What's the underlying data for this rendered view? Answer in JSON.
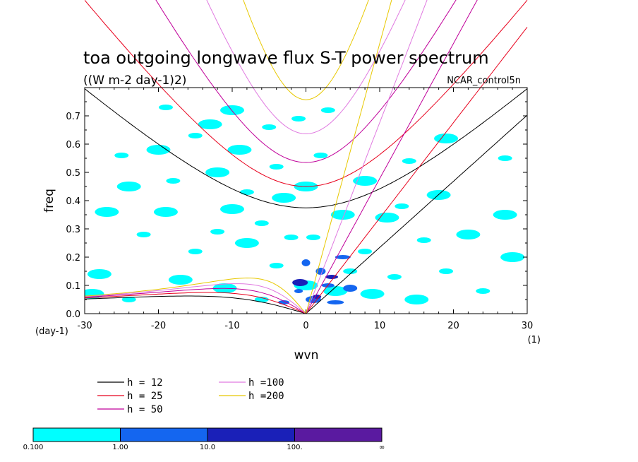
{
  "chart_data": {
    "type": "contour",
    "title": "toa outgoing longwave flux S-T power spectrum",
    "subtitle": "((W m-2 day-1)2)",
    "case_label": "NCAR_control5n",
    "xlabel": "wvn",
    "ylabel": "freq",
    "x_units": "(1)",
    "y_units": "(day-1)",
    "xlim": [
      -30,
      30
    ],
    "ylim": [
      0,
      0.8
    ],
    "x_ticks": [
      -30,
      -20,
      -10,
      0,
      10,
      20,
      30
    ],
    "y_ticks": [
      0.0,
      0.1,
      0.2,
      0.3,
      0.4,
      0.5,
      0.6,
      0.7
    ],
    "y_tick_labels": [
      "0.0",
      "0.1",
      "0.2",
      "0.3",
      "0.4",
      "0.5",
      "0.6",
      "0.7"
    ],
    "dispersion_curves": [
      {
        "name": "h = 12",
        "h": 12,
        "color": "#000000"
      },
      {
        "name": "h = 25",
        "h": 25,
        "color": "#e8001c"
      },
      {
        "name": "h = 50",
        "h": 50,
        "color": "#c0009a"
      },
      {
        "name": "h =100",
        "h": 100,
        "color": "#e07ae0"
      },
      {
        "name": "h =200",
        "h": 200,
        "color": "#e8c800"
      }
    ],
    "colorbar": {
      "levels": [
        "0.100",
        "1.00",
        "10.0",
        "100.",
        "∞"
      ],
      "colors": [
        "#00ffff",
        "#1466f0",
        "#1a20b8",
        "#5a1aa0"
      ]
    },
    "contour_fields": [
      {
        "level": "0.1-1",
        "color": "#00ffff",
        "patches": [
          [
            -25,
            0.56
          ],
          [
            -20,
            0.58
          ],
          [
            -18,
            0.47
          ],
          [
            -24,
            0.45
          ],
          [
            -15,
            0.63
          ],
          [
            -9,
            0.58
          ],
          [
            -5,
            0.66
          ],
          [
            -27,
            0.36
          ],
          [
            -22,
            0.28
          ],
          [
            -28,
            0.14
          ],
          [
            -24,
            0.05
          ],
          [
            -17,
            0.12
          ],
          [
            -15,
            0.22
          ],
          [
            -19,
            0.36
          ],
          [
            -12,
            0.29
          ],
          [
            -10,
            0.37
          ],
          [
            -8,
            0.43
          ],
          [
            -12,
            0.5
          ],
          [
            -4,
            0.52
          ],
          [
            -3,
            0.41
          ],
          [
            -6,
            0.32
          ],
          [
            -8,
            0.25
          ],
          [
            -4,
            0.17
          ],
          [
            -11,
            0.09
          ],
          [
            -6,
            0.05
          ],
          [
            0,
            0.1
          ],
          [
            1,
            0.27
          ],
          [
            0,
            0.45
          ],
          [
            2,
            0.56
          ],
          [
            5,
            0.35
          ],
          [
            6,
            0.15
          ],
          [
            9,
            0.07
          ],
          [
            8,
            0.22
          ],
          [
            11,
            0.34
          ],
          [
            12,
            0.13
          ],
          [
            15,
            0.05
          ],
          [
            16,
            0.26
          ],
          [
            18,
            0.42
          ],
          [
            19,
            0.15
          ],
          [
            22,
            0.28
          ],
          [
            24,
            0.08
          ],
          [
            27,
            0.35
          ],
          [
            27,
            0.55
          ],
          [
            19,
            0.62
          ],
          [
            14,
            0.54
          ],
          [
            8,
            0.47
          ],
          [
            -1,
            0.69
          ],
          [
            -10,
            0.72
          ],
          [
            -19,
            0.73
          ],
          [
            -13,
            0.67
          ],
          [
            3,
            0.72
          ],
          [
            -29,
            0.07
          ],
          [
            -2,
            0.27
          ],
          [
            4,
            0.08
          ],
          [
            13,
            0.38
          ],
          [
            28,
            0.2
          ]
        ]
      },
      {
        "level": "1-10",
        "color": "#1466f0",
        "patches": [
          [
            -1,
            0.08
          ],
          [
            1,
            0.05
          ],
          [
            3,
            0.1
          ],
          [
            2,
            0.15
          ],
          [
            4,
            0.04
          ],
          [
            6,
            0.09
          ],
          [
            -3,
            0.04
          ],
          [
            0,
            0.18
          ],
          [
            5,
            0.2
          ]
        ]
      },
      {
        "level": "10-100",
        "color": "#1a20b8",
        "patches": [
          [
            1.5,
            0.06
          ],
          [
            -0.8,
            0.11
          ],
          [
            3.5,
            0.13
          ]
        ]
      }
    ]
  }
}
